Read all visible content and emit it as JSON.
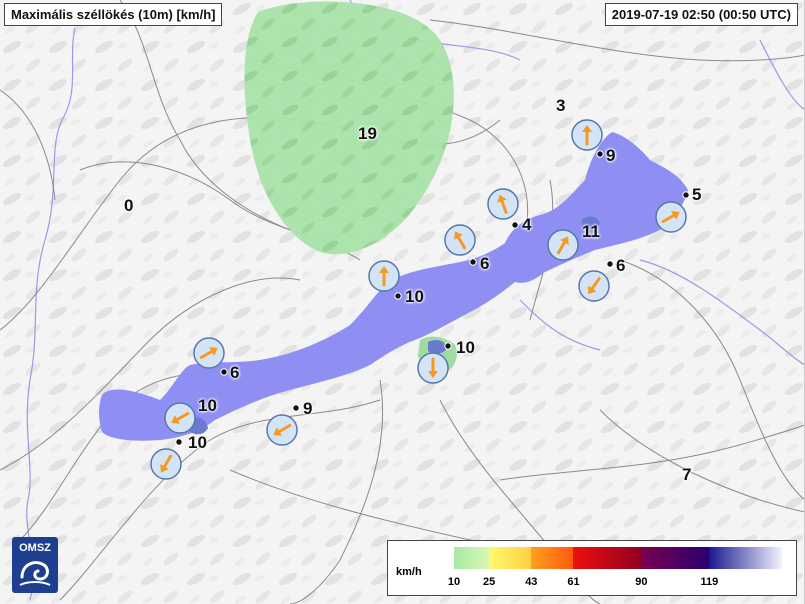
{
  "title": "Maximális széllökés (10m) [km/h]",
  "timestamp": "2019-07-19 02:50 (00:50 UTC)",
  "logo_text": "OMSZ",
  "colors": {
    "lake_max": "#8f8ff3",
    "lake_deep": "#6678cc",
    "gust_green": "#a8e6a8",
    "arrow": "#f59a1e",
    "circle_fill": "#d3e4f7",
    "circle_stroke": "#5577aa",
    "streamline": "#8a8a8a",
    "river": "#8f8fe8"
  },
  "region_labels": [
    {
      "id": "north-a",
      "text": "3"
    },
    {
      "id": "green-center",
      "text": "19"
    },
    {
      "id": "west",
      "text": "0"
    },
    {
      "id": "south-east",
      "text": "7"
    }
  ],
  "stations": [
    {
      "id": "s1",
      "value": "9",
      "arrow_rot": 180
    },
    {
      "id": "s2",
      "value": "5",
      "arrow_rot": 240
    },
    {
      "id": "s3",
      "value": "4",
      "arrow_rot": 160
    },
    {
      "id": "s4",
      "value": "11",
      "arrow_rot": 210
    },
    {
      "id": "s5",
      "value": "6",
      "arrow_rot": 150
    },
    {
      "id": "s6",
      "value": "6",
      "arrow_rot": 35
    },
    {
      "id": "s7",
      "value": "10",
      "arrow_rot": 180
    },
    {
      "id": "s8",
      "value": "10",
      "arrow_rot": 0
    },
    {
      "id": "s9",
      "value": "6",
      "arrow_rot": 240
    },
    {
      "id": "s10",
      "value": "10",
      "arrow_rot": 60
    },
    {
      "id": "s11",
      "value": "9",
      "arrow_rot": 60
    },
    {
      "id": "s12",
      "value": "10",
      "arrow_rot": 30
    }
  ],
  "legend": {
    "unit": "km/h",
    "ticks": [
      "10",
      "25",
      "43",
      "61",
      "90",
      "119"
    ],
    "segments": [
      {
        "from": 10,
        "to": 25,
        "colors": [
          "#a8e8a8",
          "#d8f8b0"
        ]
      },
      {
        "from": 25,
        "to": 43,
        "colors": [
          "#fff870",
          "#ffd040"
        ]
      },
      {
        "from": 43,
        "to": 61,
        "colors": [
          "#ffa020",
          "#ff5a10"
        ]
      },
      {
        "from": 61,
        "to": 90,
        "colors": [
          "#ee1010",
          "#900020"
        ]
      },
      {
        "from": 90,
        "to": 119,
        "colors": [
          "#7a0050",
          "#2a0070"
        ]
      },
      {
        "from": 119,
        "to": 150,
        "colors": [
          "#1a1a90",
          "#f2f2ff"
        ]
      }
    ]
  }
}
